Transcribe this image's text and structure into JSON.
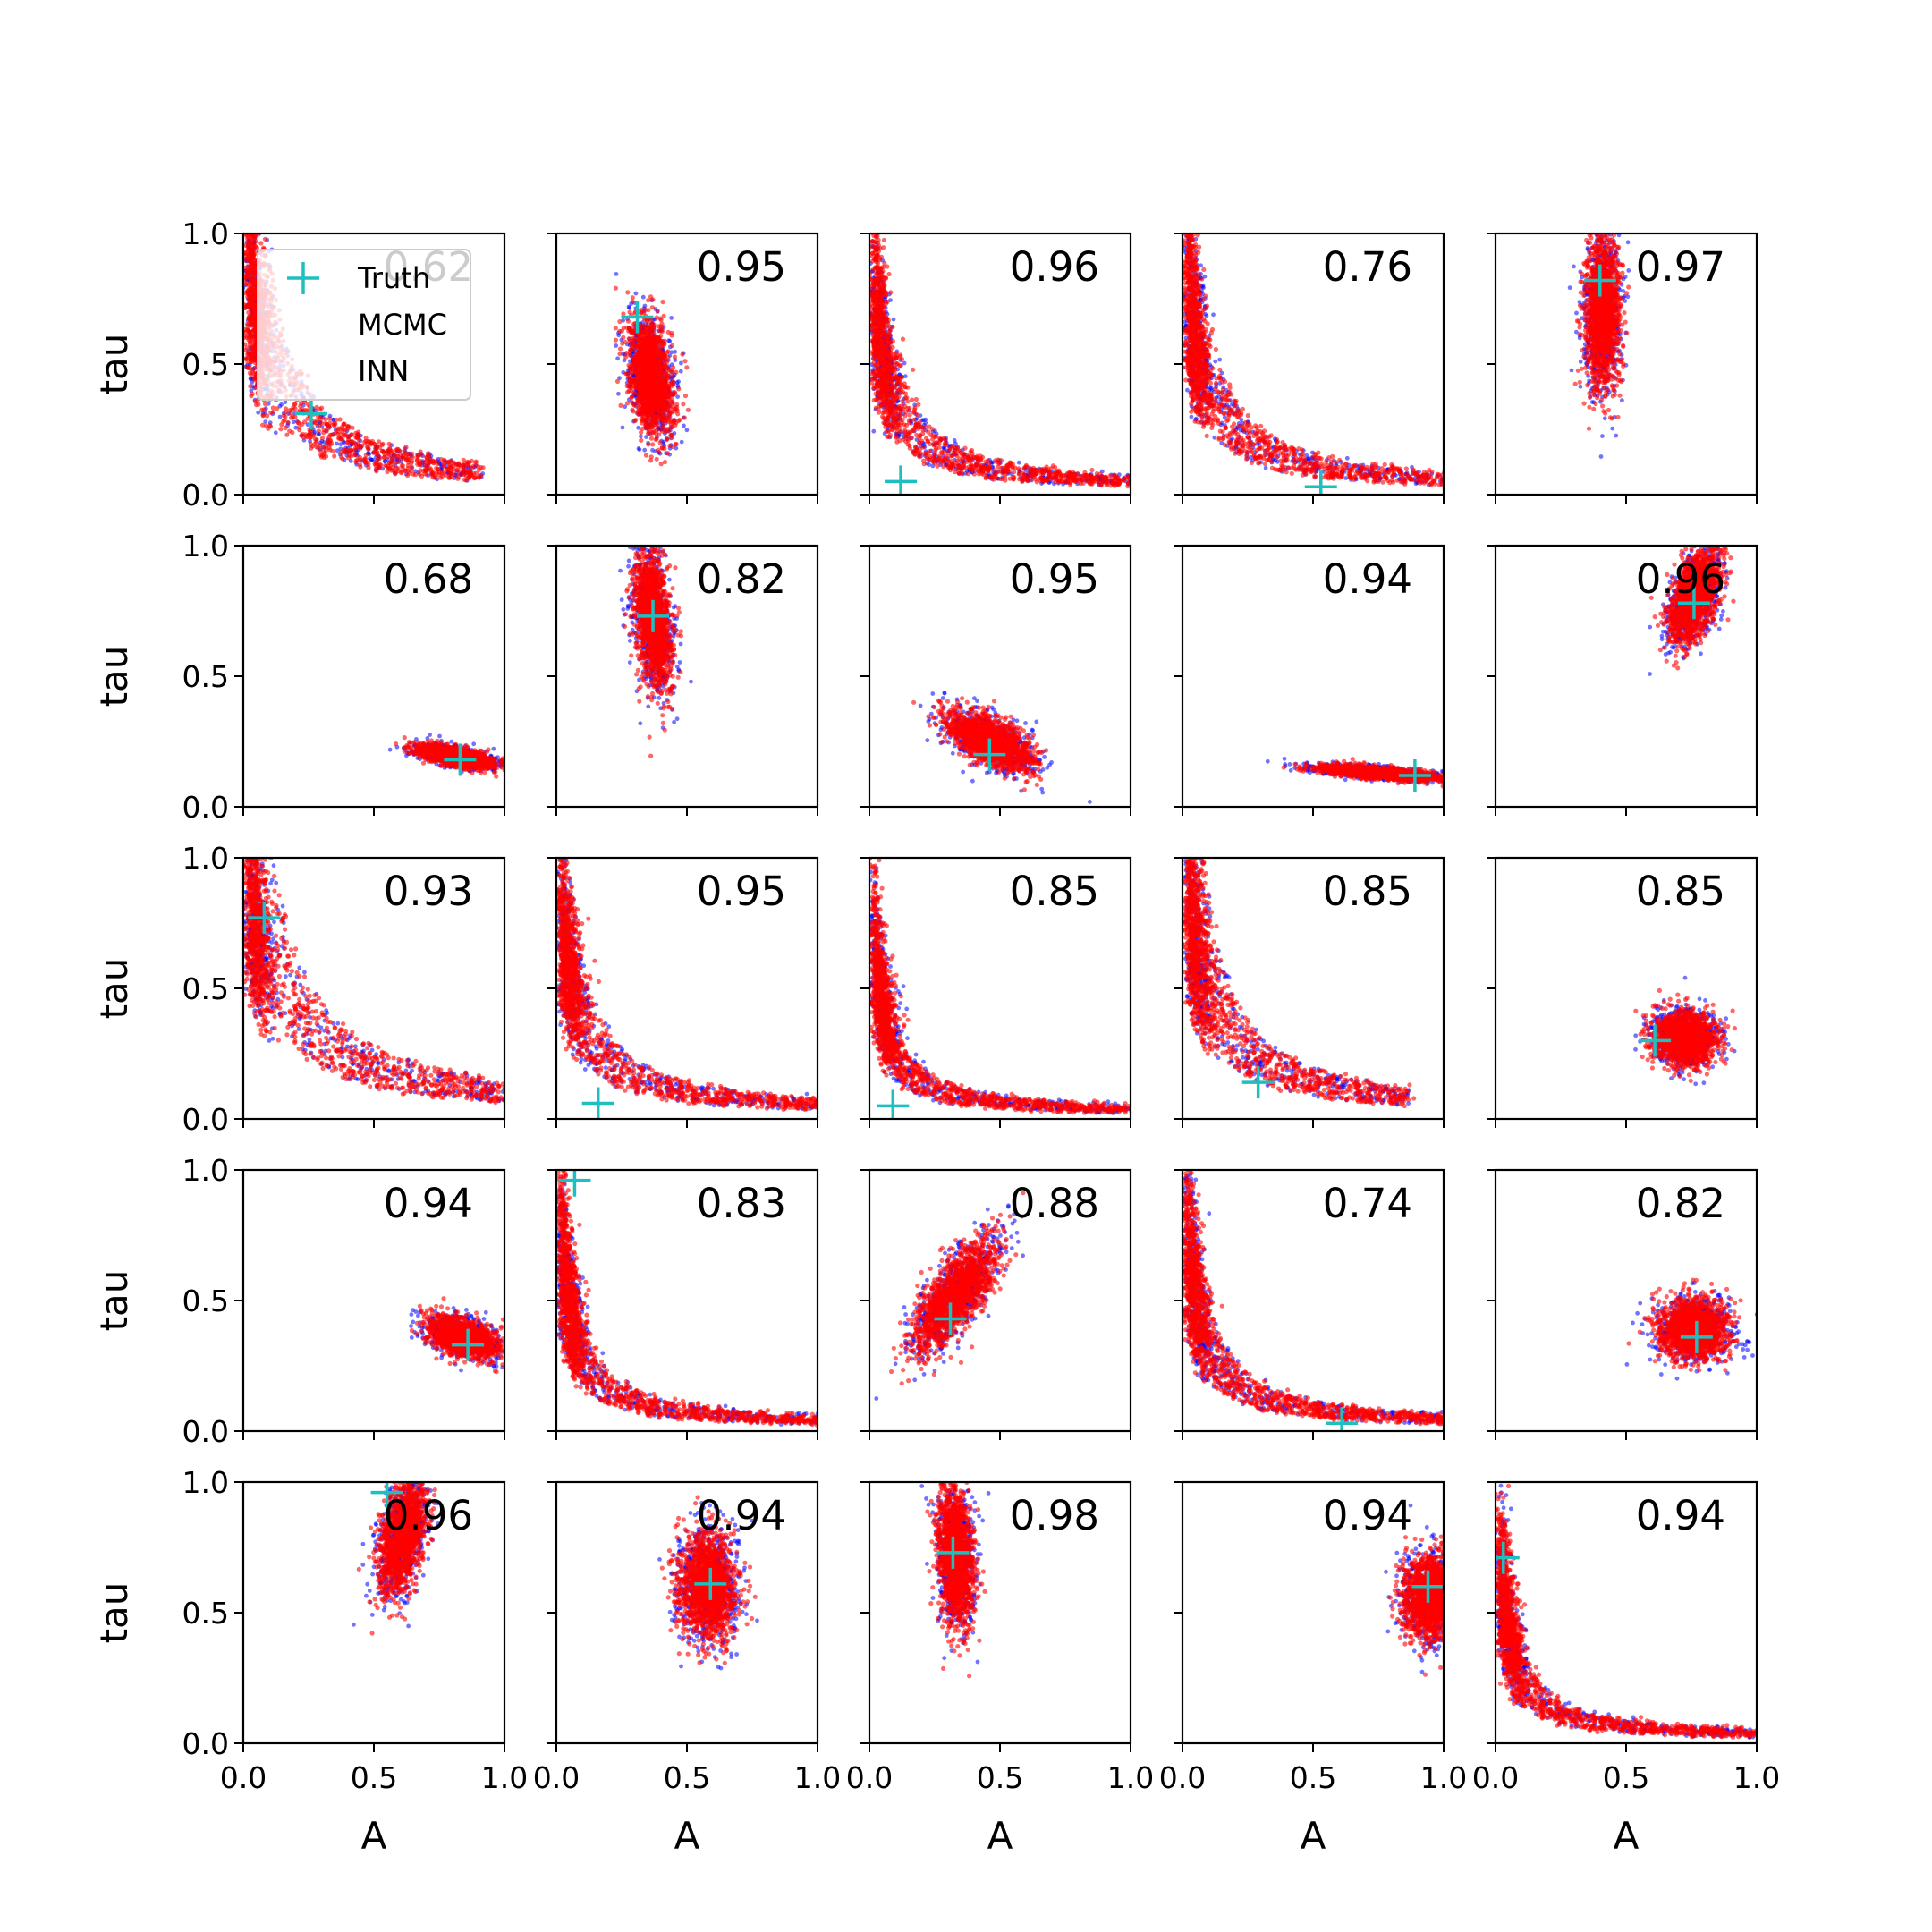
{
  "chart_data": {
    "type": "scatter",
    "layout": {
      "rows": 5,
      "cols": 5
    },
    "xlabel": "A",
    "ylabel": "tau",
    "xlim": [
      0,
      1
    ],
    "ylim": [
      0,
      1
    ],
    "xticks": [
      "0.0",
      "0.5",
      "1.0"
    ],
    "yticks": [
      "0.0",
      "0.5",
      "1.0"
    ],
    "grid": false,
    "colors": {
      "truth": "#1fbfbf",
      "mcmc": "#0000ff",
      "inn": "#ff0000"
    },
    "legend": {
      "location": "upper left of first panel",
      "entries": [
        {
          "name": "Truth",
          "marker": "cross"
        },
        {
          "name": "MCMC",
          "marker": "dot"
        },
        {
          "name": "INN",
          "marker": "dot"
        }
      ]
    },
    "panels": [
      {
        "score": "0.62",
        "truth": [
          0.26,
          0.31
        ],
        "shape": "banana",
        "k": 0.075,
        "a_max": 0.9
      },
      {
        "score": "0.95",
        "truth": [
          0.31,
          0.68
        ],
        "shape": "blob",
        "center": [
          0.36,
          0.45
        ],
        "spread": [
          0.07,
          0.2
        ],
        "tilt": 0.15
      },
      {
        "score": "0.96",
        "truth": [
          0.12,
          0.05
        ],
        "shape": "banana",
        "k": 0.045,
        "a_max": 1.0
      },
      {
        "score": "0.76",
        "truth": [
          0.53,
          0.03
        ],
        "shape": "banana",
        "k": 0.055,
        "a_max": 1.0
      },
      {
        "score": "0.97",
        "truth": [
          0.4,
          0.82
        ],
        "shape": "blob",
        "center": [
          0.41,
          0.7
        ],
        "spread": [
          0.06,
          0.26
        ],
        "tilt": 0.0
      },
      {
        "score": "0.68",
        "truth": [
          0.83,
          0.18
        ],
        "shape": "blob",
        "center": [
          0.82,
          0.19
        ],
        "spread": [
          0.13,
          0.03
        ],
        "tilt": -0.2
      },
      {
        "score": "0.82",
        "truth": [
          0.37,
          0.73
        ],
        "shape": "blob",
        "center": [
          0.37,
          0.72
        ],
        "spread": [
          0.06,
          0.24
        ],
        "tilt": 0.1
      },
      {
        "score": "0.95",
        "truth": [
          0.46,
          0.2
        ],
        "shape": "blob",
        "center": [
          0.46,
          0.25
        ],
        "spread": [
          0.16,
          0.07
        ],
        "tilt": -0.5
      },
      {
        "score": "0.94",
        "truth": [
          0.89,
          0.12
        ],
        "shape": "blob",
        "center": [
          0.75,
          0.13
        ],
        "spread": [
          0.2,
          0.02
        ],
        "tilt": -0.08
      },
      {
        "score": "0.96",
        "truth": [
          0.76,
          0.78
        ],
        "shape": "blob",
        "center": [
          0.76,
          0.8
        ],
        "spread": [
          0.07,
          0.16
        ],
        "tilt": -0.35
      },
      {
        "score": "0.93",
        "truth": [
          0.08,
          0.77
        ],
        "shape": "banana",
        "k": 0.1,
        "a_max": 1.0
      },
      {
        "score": "0.95",
        "truth": [
          0.16,
          0.06
        ],
        "shape": "banana",
        "k": 0.05,
        "a_max": 1.0
      },
      {
        "score": "0.85",
        "truth": [
          0.09,
          0.05
        ],
        "shape": "banana",
        "k": 0.03,
        "a_max": 1.0
      },
      {
        "score": "0.85",
        "truth": [
          0.29,
          0.14
        ],
        "shape": "banana",
        "k": 0.07,
        "a_max": 0.85
      },
      {
        "score": "0.85",
        "truth": [
          0.61,
          0.3
        ],
        "shape": "blob",
        "center": [
          0.72,
          0.31
        ],
        "spread": [
          0.11,
          0.09
        ],
        "tilt": -0.15
      },
      {
        "score": "0.94",
        "truth": [
          0.86,
          0.33
        ],
        "shape": "blob",
        "center": [
          0.84,
          0.36
        ],
        "spread": [
          0.12,
          0.06
        ],
        "tilt": -0.3
      },
      {
        "score": "0.83",
        "truth": [
          0.07,
          0.96
        ],
        "shape": "banana",
        "k": 0.035,
        "a_max": 1.0
      },
      {
        "score": "0.88",
        "truth": [
          0.31,
          0.43
        ],
        "shape": "blob",
        "center": [
          0.33,
          0.52
        ],
        "spread": [
          0.08,
          0.22
        ],
        "tilt": -0.6
      },
      {
        "score": "0.74",
        "truth": [
          0.61,
          0.03
        ],
        "shape": "banana",
        "k": 0.04,
        "a_max": 1.0
      },
      {
        "score": "0.82",
        "truth": [
          0.77,
          0.36
        ],
        "shape": "blob",
        "center": [
          0.76,
          0.39
        ],
        "spread": [
          0.12,
          0.1
        ],
        "tilt": 0.0
      },
      {
        "score": "0.96",
        "truth": [
          0.55,
          0.96
        ],
        "shape": "blob",
        "center": [
          0.61,
          0.8
        ],
        "spread": [
          0.07,
          0.2
        ],
        "tilt": -0.2
      },
      {
        "score": "0.94",
        "truth": [
          0.59,
          0.61
        ],
        "shape": "blob",
        "center": [
          0.58,
          0.6
        ],
        "spread": [
          0.1,
          0.18
        ],
        "tilt": 0.0
      },
      {
        "score": "0.98",
        "truth": [
          0.32,
          0.73
        ],
        "shape": "blob",
        "center": [
          0.33,
          0.72
        ],
        "spread": [
          0.06,
          0.24
        ],
        "tilt": 0.05
      },
      {
        "score": "0.94",
        "truth": [
          0.94,
          0.6
        ],
        "shape": "blob",
        "center": [
          0.95,
          0.56
        ],
        "spread": [
          0.09,
          0.14
        ],
        "tilt": 0.0
      },
      {
        "score": "0.94",
        "truth": [
          0.03,
          0.71
        ],
        "shape": "banana",
        "k": 0.03,
        "a_max": 1.0
      }
    ]
  }
}
